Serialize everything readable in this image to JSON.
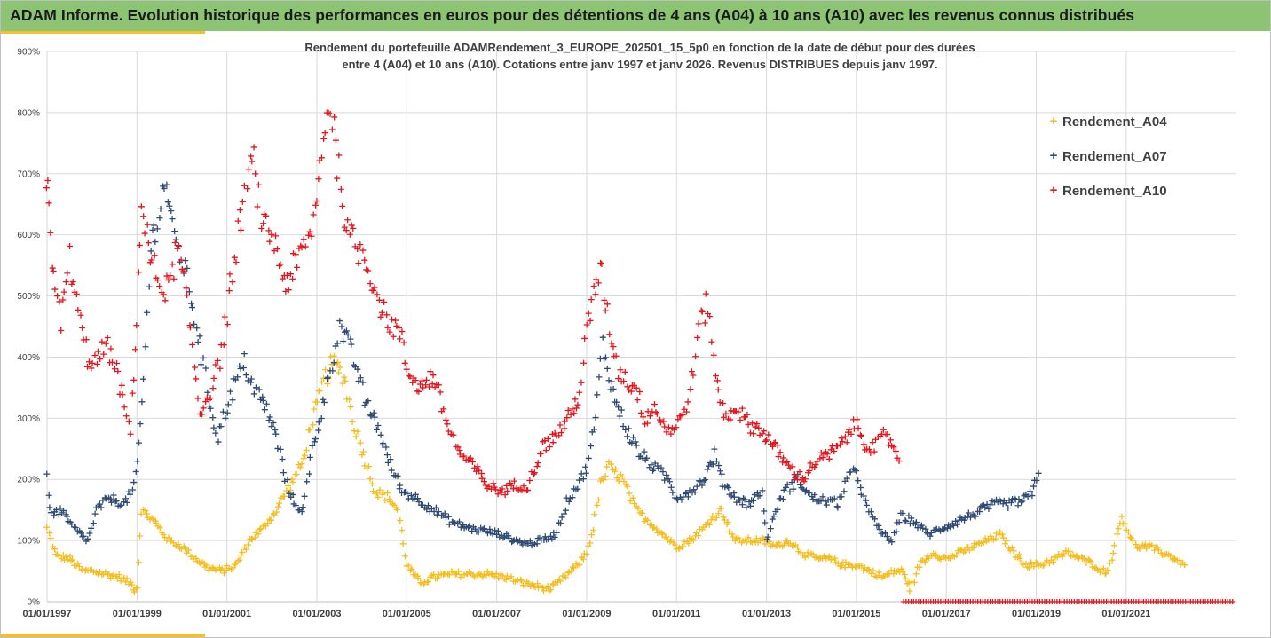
{
  "header": {
    "title": "ADAM Informe. Evolution historique des performances en euros pour des détentions de 4 ans (A04) à 10 ans (A10) avec les revenus connus distribués"
  },
  "colors": {
    "banner": "#8cc474",
    "accent": "#f3c12e",
    "A04": "#f5bd1f",
    "A07": "#2f4a72",
    "A10": "#e8141c",
    "grid": "#d9d9d9"
  },
  "chart_data": {
    "type": "scatter",
    "title_line1": "Rendement du portefeuille ADAMRendement_3_EUROPE_202501_15_5p0  en fonction de la date de début pour des durées",
    "title_line2": "entre 4 (A04) et 10 ans (A10). Cotations entre janv 1997 et janv 2026. Revenus DISTRIBUES depuis janv 1997.",
    "xlim": [
      1997.0,
      2023.45
    ],
    "ylim": [
      0,
      900
    ],
    "y_ticks": [
      0,
      100,
      200,
      300,
      400,
      500,
      600,
      700,
      800,
      900
    ],
    "y_tick_labels": [
      "0%",
      "100%",
      "200%",
      "300%",
      "400%",
      "500%",
      "600%",
      "700%",
      "800%",
      "900%"
    ],
    "x_ticks": [
      1997,
      1999,
      2001,
      2003,
      2005,
      2007,
      2009,
      2011,
      2013,
      2015,
      2017,
      2019,
      2021
    ],
    "x_tick_labels": [
      "01/01/1997",
      "01/01/1999",
      "01/01/2001",
      "01/01/2003",
      "01/01/2005",
      "01/01/2007",
      "01/01/2009",
      "01/01/2011",
      "01/01/2013",
      "01/01/2015",
      "01/01/2017",
      "01/01/2019",
      "01/01/2021"
    ],
    "legend_position": "right",
    "series": [
      {
        "name": "Rendement_A04",
        "color": "#f5bd1f",
        "x": [
          1997.0,
          1997.2,
          1997.5,
          1997.8,
          1998.0,
          1998.3,
          1998.6,
          1998.85,
          1998.95,
          1999.0,
          1999.1,
          1999.4,
          1999.7,
          2000.0,
          2000.3,
          2000.6,
          2000.9,
          2001.2,
          2001.5,
          2001.8,
          2002.1,
          2002.4,
          2002.7,
          2002.9,
          2003.0,
          2003.15,
          2003.35,
          2003.6,
          2003.8,
          2004.0,
          2004.3,
          2004.6,
          2004.8,
          2005.0,
          2005.3,
          2005.6,
          2006.0,
          2006.4,
          2006.8,
          2007.2,
          2007.6,
          2007.9,
          2008.2,
          2008.5,
          2008.8,
          2009.0,
          2009.15,
          2009.3,
          2009.5,
          2009.8,
          2010.1,
          2010.4,
          2010.7,
          2011.0,
          2011.3,
          2011.6,
          2011.85,
          2012.0,
          2012.3,
          2012.6,
          2012.9,
          2013.2,
          2013.5,
          2013.8,
          2014.1,
          2014.4,
          2014.7,
          2015.0,
          2015.3,
          2015.6,
          2015.85,
          2016.0,
          2016.1,
          2016.2,
          2016.4,
          2016.7,
          2017.0,
          2017.3,
          2017.6,
          2017.9,
          2018.2,
          2018.5,
          2018.8,
          2019.1,
          2019.4,
          2019.7,
          2020.0,
          2020.3,
          2020.45,
          2020.6,
          2020.9,
          2021.2,
          2021.5,
          2021.8,
          2022.1,
          2022.3
        ],
        "y": [
          120,
          75,
          70,
          50,
          50,
          45,
          40,
          30,
          20,
          25,
          150,
          130,
          100,
          90,
          70,
          55,
          50,
          60,
          100,
          120,
          150,
          190,
          230,
          300,
          320,
          360,
          390,
          370,
          300,
          250,
          180,
          170,
          150,
          60,
          30,
          40,
          45,
          45,
          45,
          40,
          30,
          25,
          20,
          40,
          60,
          80,
          120,
          190,
          220,
          200,
          150,
          130,
          110,
          90,
          100,
          120,
          140,
          150,
          100,
          100,
          100,
          90,
          100,
          80,
          70,
          70,
          60,
          60,
          50,
          40,
          50,
          50,
          40,
          20,
          60,
          80,
          70,
          80,
          90,
          100,
          110,
          80,
          60,
          60,
          70,
          80,
          70,
          60,
          50,
          50,
          140,
          90,
          90,
          80,
          70,
          60
        ]
      },
      {
        "name": "Rendement_A07",
        "color": "#2f4a72",
        "x": [
          1997.0,
          1997.1,
          1997.3,
          1997.6,
          1997.9,
          1998.1,
          1998.4,
          1998.7,
          1998.9,
          1999.0,
          1999.15,
          1999.3,
          1999.5,
          1999.65,
          1999.8,
          2000.0,
          2000.2,
          2000.4,
          2000.6,
          2000.8,
          2001.0,
          2001.2,
          2001.4,
          2001.6,
          2001.85,
          2002.1,
          2002.3,
          2002.5,
          2002.7,
          2002.9,
          2003.1,
          2003.3,
          2003.5,
          2003.7,
          2003.9,
          2004.1,
          2004.3,
          2004.6,
          2004.9,
          2005.2,
          2005.6,
          2006.0,
          2006.4,
          2006.8,
          2007.1,
          2007.4,
          2007.7,
          2008.0,
          2008.3,
          2008.6,
          2008.8,
          2009.0,
          2009.2,
          2009.35,
          2009.6,
          2009.9,
          2010.2,
          2010.5,
          2010.8,
          2011.0,
          2011.3,
          2011.6,
          2011.85,
          2012.0,
          2012.3,
          2012.6,
          2012.9,
          2013.0,
          2013.2,
          2013.4,
          2013.7,
          2014.0,
          2014.3,
          2014.6,
          2014.8,
          2015.0,
          2015.2,
          2015.4,
          2015.6,
          2015.8,
          2016.0,
          2016.3,
          2016.6,
          2016.9,
          2017.2,
          2017.5,
          2017.8,
          2018.1,
          2018.4,
          2018.7,
          2018.9,
          2019.05
        ],
        "y": [
          200,
          140,
          150,
          120,
          100,
          150,
          170,
          160,
          180,
          220,
          360,
          580,
          640,
          690,
          600,
          560,
          500,
          420,
          330,
          270,
          320,
          360,
          390,
          350,
          320,
          270,
          200,
          160,
          150,
          250,
          310,
          380,
          450,
          420,
          380,
          320,
          300,
          230,
          180,
          170,
          150,
          130,
          120,
          115,
          110,
          100,
          95,
          100,
          110,
          170,
          190,
          220,
          300,
          420,
          340,
          280,
          240,
          220,
          200,
          170,
          180,
          200,
          240,
          200,
          170,
          160,
          180,
          100,
          150,
          180,
          200,
          170,
          165,
          160,
          200,
          215,
          160,
          130,
          110,
          100,
          140,
          130,
          110,
          120,
          130,
          140,
          150,
          160,
          160,
          165,
          175,
          210
        ]
      },
      {
        "name": "Rendement_A10",
        "color": "#e8141c",
        "x": [
          1997.0,
          1997.05,
          1997.15,
          1997.3,
          1997.5,
          1997.7,
          1997.9,
          1998.1,
          1998.3,
          1998.5,
          1998.65,
          1998.85,
          1999.0,
          1999.1,
          1999.3,
          1999.5,
          1999.7,
          1999.9,
          2000.05,
          2000.2,
          2000.4,
          2000.6,
          2000.8,
          2001.0,
          2001.2,
          2001.4,
          2001.6,
          2001.8,
          2002.0,
          2002.3,
          2002.6,
          2002.8,
          2003.0,
          2003.1,
          2003.3,
          2003.5,
          2003.7,
          2003.9,
          2004.1,
          2004.3,
          2004.5,
          2004.7,
          2004.85,
          2005.0,
          2005.3,
          2005.6,
          2005.9,
          2006.2,
          2006.5,
          2006.8,
          2007.1,
          2007.4,
          2007.7,
          2008.0,
          2008.3,
          2008.6,
          2008.85,
          2009.0,
          2009.15,
          2009.3,
          2009.5,
          2009.7,
          2009.9,
          2010.1,
          2010.3,
          2010.5,
          2010.7,
          2010.9,
          2011.1,
          2011.3,
          2011.5,
          2011.7,
          2011.9,
          2012.1,
          2012.3,
          2012.6,
          2012.9,
          2013.2,
          2013.5,
          2013.8,
          2014.1,
          2014.4,
          2014.7,
          2014.85,
          2015.0,
          2015.2,
          2015.4,
          2015.6,
          2015.8,
          2015.95
        ],
        "y": [
          700,
          660,
          520,
          460,
          560,
          470,
          400,
          390,
          420,
          390,
          340,
          280,
          470,
          650,
          560,
          520,
          510,
          580,
          520,
          440,
          310,
          340,
          380,
          470,
          580,
          670,
          720,
          610,
          600,
          520,
          560,
          590,
          650,
          750,
          820,
          700,
          600,
          580,
          560,
          510,
          470,
          450,
          440,
          380,
          350,
          370,
          290,
          240,
          220,
          190,
          180,
          190,
          190,
          250,
          270,
          300,
          340,
          440,
          500,
          550,
          450,
          380,
          360,
          350,
          300,
          320,
          290,
          280,
          300,
          340,
          450,
          490,
          350,
          300,
          320,
          290,
          280,
          250,
          220,
          200,
          230,
          240,
          260,
          280,
          290,
          260,
          250,
          270,
          260,
          230
        ]
      }
    ]
  }
}
